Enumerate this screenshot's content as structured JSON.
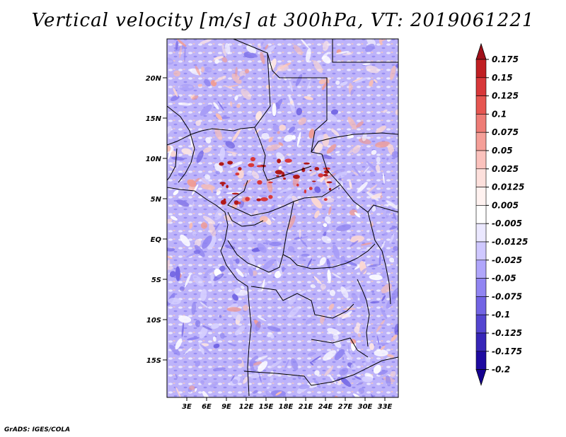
{
  "title": "Vertical velocity [m/s] at 300hPa, VT: 2019061221",
  "credit": "GrADS: IGES/COLA",
  "map": {
    "lat_labels": [
      "20N",
      "15N",
      "10N",
      "5N",
      "EQ",
      "5S",
      "10S",
      "15S"
    ],
    "lon_labels": [
      "3E",
      "6E",
      "9E",
      "12E",
      "15E",
      "18E",
      "21E",
      "24E",
      "27E",
      "30E",
      "33E"
    ],
    "lon_range": [
      "0E",
      "35E"
    ],
    "lat_range": [
      "19S",
      "25N"
    ]
  },
  "colorbar": {
    "labels": [
      "0.175",
      "0.15",
      "0.125",
      "0.1",
      "0.075",
      "0.05",
      "0.025",
      "0.0125",
      "0.005",
      "-0.005",
      "-0.0125",
      "-0.025",
      "-0.05",
      "-0.075",
      "-0.1",
      "-0.125",
      "-0.175",
      "-0.2"
    ],
    "colors": [
      "#a0101a",
      "#c01f23",
      "#d8383a",
      "#e65651",
      "#ee7c76",
      "#f59f98",
      "#fbc2bd",
      "#fde0dc",
      "#fff2f0",
      "#ffffff",
      "#ebe8ff",
      "#cfc8ff",
      "#b0a6fb",
      "#9185f2",
      "#7264e4",
      "#5445d0",
      "#3726b8",
      "#1e0aa0",
      "#150090"
    ]
  },
  "colors": {
    "negative_fill": "#b7adf8",
    "positive_fill": "#f6b4ab",
    "strong_positive": "#b01818",
    "coastline": "#000000"
  }
}
